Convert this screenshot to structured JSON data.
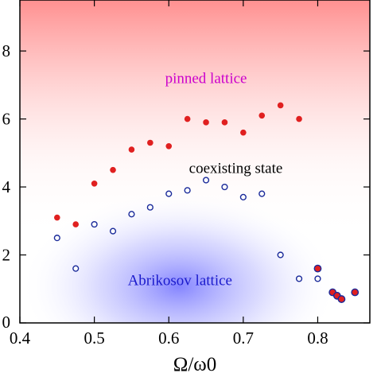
{
  "chart_data": {
    "type": "scatter",
    "title": "",
    "xlabel": "Ω/ω0",
    "ylabel": "",
    "xlim": [
      0.4,
      0.87
    ],
    "ylim": [
      0.0,
      0.95
    ],
    "x_ticks": [
      "0.4",
      "0.5",
      "0.6",
      "0.7",
      "0.8"
    ],
    "x_tick_values": [
      0.4,
      0.5,
      0.6,
      0.7,
      0.8
    ],
    "y_ticks": [
      "0",
      "2",
      "4",
      "6",
      "8"
    ],
    "y_tick_values": [
      0.0,
      0.2,
      0.4,
      0.6,
      0.8
    ],
    "grid": false,
    "legend": "none",
    "regions": [
      {
        "label": "pinned lattice",
        "color": "#cc00cc",
        "x": 0.65,
        "y": 0.72,
        "background": "#ff8a8a"
      },
      {
        "label": "coexisting state",
        "color": "#000000",
        "x": 0.69,
        "y": 0.455
      },
      {
        "label": "Abrikosov lattice",
        "color": "#1a1acc",
        "x": 0.615,
        "y": 0.125,
        "background": "#7a7aff"
      }
    ],
    "series": [
      {
        "marker": "filled",
        "color": "#e02020",
        "x": [
          0.45,
          0.475,
          0.5,
          0.525,
          0.55,
          0.575,
          0.6,
          0.625,
          0.65,
          0.675,
          0.7,
          0.725,
          0.75,
          0.775
        ],
        "y": [
          0.31,
          0.29,
          0.41,
          0.45,
          0.51,
          0.53,
          0.52,
          0.6,
          0.59,
          0.59,
          0.56,
          0.61,
          0.64,
          0.6
        ]
      },
      {
        "marker": "open",
        "color": "#1a2a9a",
        "x": [
          0.45,
          0.475,
          0.5,
          0.525,
          0.55,
          0.575,
          0.6,
          0.625,
          0.65,
          0.675,
          0.7,
          0.725,
          0.75,
          0.775,
          0.8
        ],
        "y": [
          0.25,
          0.16,
          0.29,
          0.27,
          0.32,
          0.34,
          0.38,
          0.39,
          0.42,
          0.4,
          0.37,
          0.38,
          0.2,
          0.13,
          0.13
        ]
      },
      {
        "marker": "filled-outlined",
        "color": "#e02020",
        "edge_color": "#1a2a9a",
        "x": [
          0.8,
          0.82,
          0.826,
          0.832,
          0.85
        ],
        "y": [
          0.16,
          0.09,
          0.08,
          0.07,
          0.09
        ]
      }
    ]
  }
}
